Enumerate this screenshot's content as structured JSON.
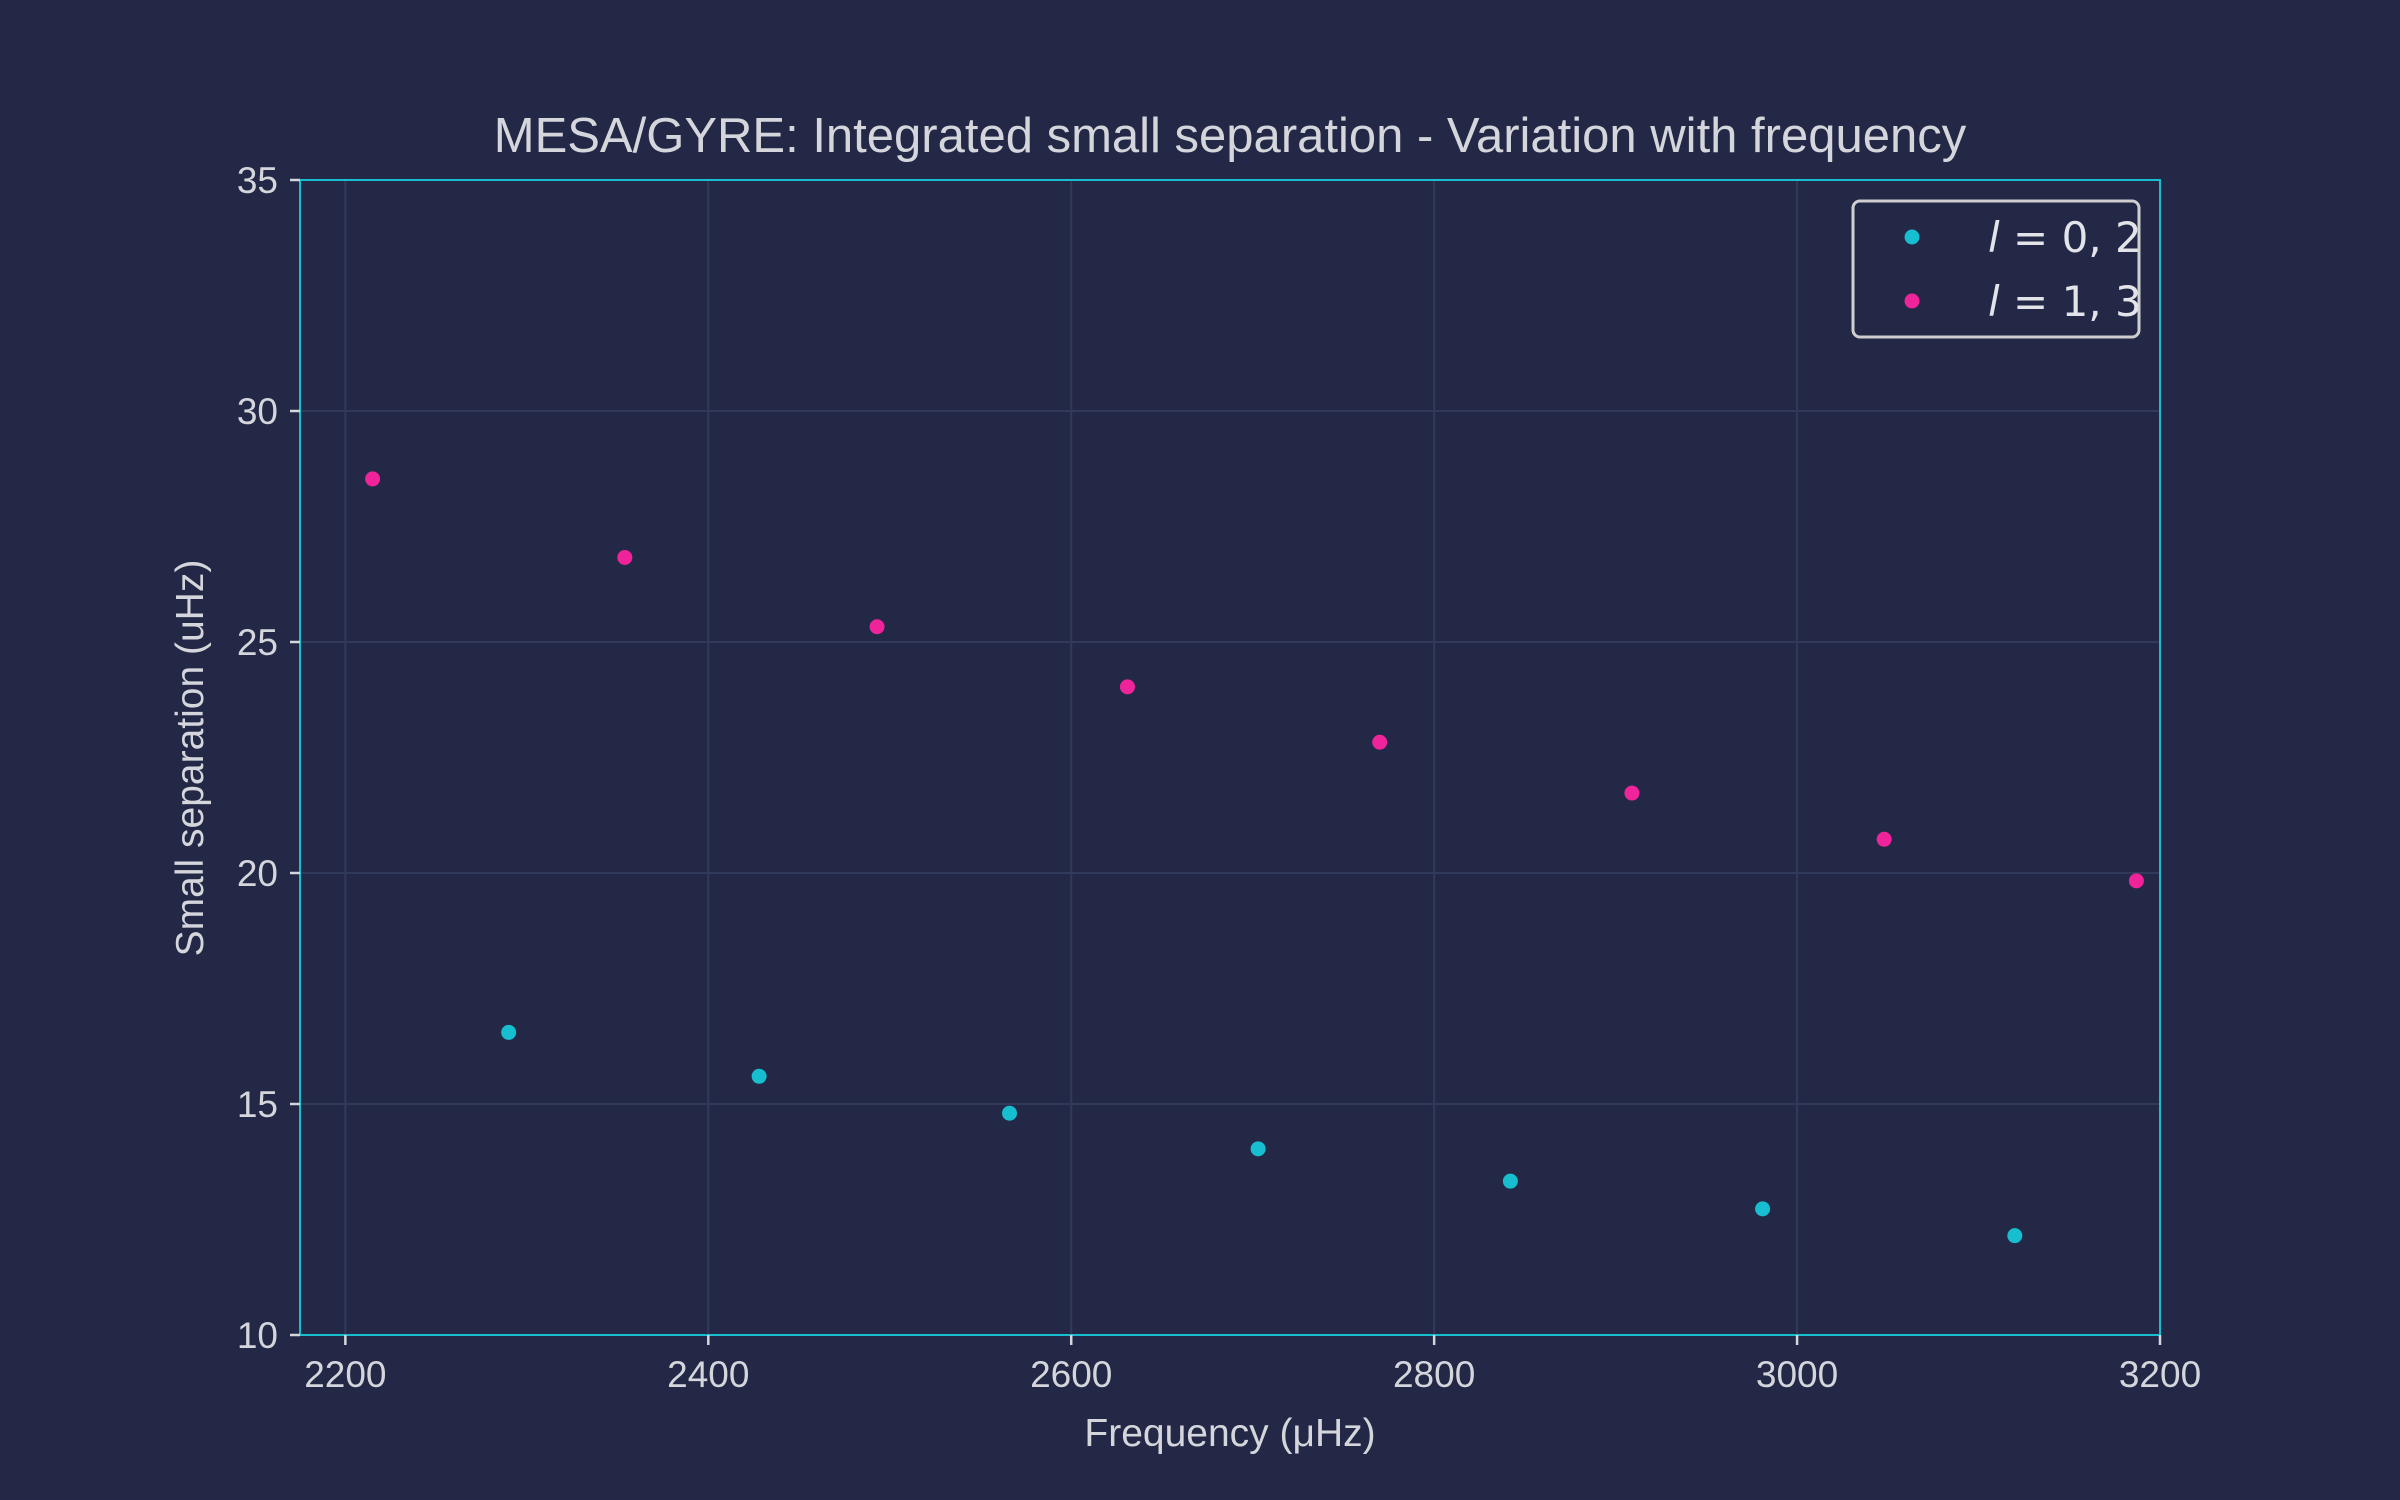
{
  "chart_data": {
    "type": "scatter",
    "title": "MESA/GYRE: Integrated small separation - Variation with frequency",
    "xlabel": "Frequency (μHz)",
    "ylabel": "Small separation (uHz)",
    "xlim": [
      2175,
      3200
    ],
    "ylim": [
      10,
      35
    ],
    "xticks": [
      2200,
      2400,
      2600,
      2800,
      3000,
      3200
    ],
    "yticks": [
      10,
      15,
      20,
      25,
      30,
      35
    ],
    "grid": true,
    "legend_position": "top-right",
    "series": [
      {
        "name": "l = 0, 2",
        "name_parts": [
          "l",
          " = 0, 2"
        ],
        "color": "#17becf",
        "x": [
          2290,
          2428,
          2566,
          2703,
          2842,
          2981,
          3120
        ],
        "y": [
          16.55,
          15.6,
          14.8,
          14.03,
          13.33,
          12.73,
          12.15
        ]
      },
      {
        "name": "l = 1, 3",
        "name_parts": [
          "l",
          " = 1, 3"
        ],
        "color": "#f0249a",
        "x": [
          2215,
          2354,
          2493,
          2631,
          2770,
          2909,
          3048,
          3187
        ],
        "y": [
          28.53,
          26.83,
          25.33,
          24.03,
          22.83,
          21.73,
          20.73,
          19.83
        ]
      }
    ]
  },
  "colors": {
    "background": "#222846",
    "frame": "#17becf",
    "grid": "#323a5c",
    "text": "#d4d6dc",
    "legend_border": "#cfcfcf"
  }
}
